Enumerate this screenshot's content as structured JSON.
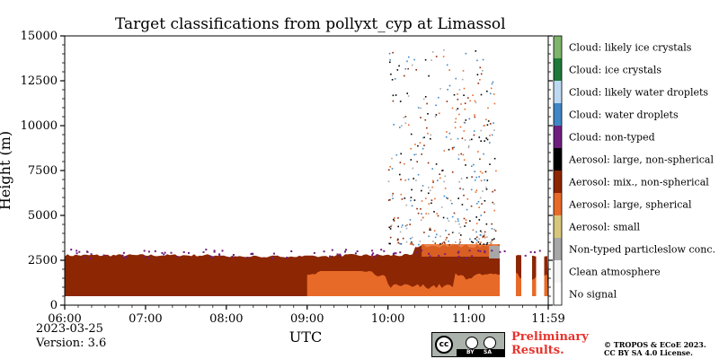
{
  "title": "Target classifications from pollyxt_cyp at Limassol",
  "date": "2023-03-25",
  "version": "Version: 3.6",
  "preliminary": "Preliminary Results.",
  "copyright": "© TROPOS & ECoE 2023. CC BY SA 4.0 License.",
  "license_badge": {
    "by": "BY",
    "sa": "SA",
    "cc": "cc"
  },
  "chart_data": {
    "type": "heatmap",
    "title": "Target classifications from pollyxt_cyp at Limassol",
    "xlabel": "UTC",
    "ylabel": "Height (m)",
    "xlim": [
      "06:00",
      "11:59"
    ],
    "ylim": [
      0,
      15000
    ],
    "x_ticks": [
      "06:00",
      "07:00",
      "08:00",
      "09:00",
      "10:00",
      "11:00",
      "11:59"
    ],
    "y_ticks": [
      0,
      2500,
      5000,
      7500,
      10000,
      12500,
      15000
    ],
    "legend_placement": "right colorbar",
    "classes": [
      {
        "label": "Cloud: likely ice crystals",
        "color": "#7fb46c"
      },
      {
        "label": "Cloud: ice crystals",
        "color": "#1e7a3a"
      },
      {
        "label": "Cloud: likely water droplets",
        "color": "#bdd9f2"
      },
      {
        "label": "Cloud: water droplets",
        "color": "#3f87c6"
      },
      {
        "label": "Cloud: non-typed",
        "color": "#6f1e7f"
      },
      {
        "label": "Aerosol: large, non-spherical",
        "color": "#000000"
      },
      {
        "label": "Aerosol: mix., non-spherical",
        "color": "#8c2603"
      },
      {
        "label": "Aerosol: large, spherical",
        "color": "#e86a28"
      },
      {
        "label": "Aerosol: small",
        "color": "#d8c77a"
      },
      {
        "label": "Non-typed particleslow conc.",
        "color": "#a7a7a7"
      },
      {
        "label": "Clean atmosphere",
        "color": "#f5f5f5"
      },
      {
        "label": "No signal",
        "color": "#ffffff"
      }
    ],
    "regions": [
      {
        "class": "Aerosol: mix., non-spherical",
        "t_start": "06:00",
        "t_end": "11:59",
        "h_min": 500,
        "h_max": 2900
      },
      {
        "class": "Aerosol: large, spherical",
        "t_start": "09:00",
        "t_end": "11:59",
        "h_min": 500,
        "h_max": 1900
      },
      {
        "class": "Aerosol: large, spherical",
        "t_start": "10:25",
        "t_end": "11:25",
        "h_min": 2700,
        "h_max": 3400
      },
      {
        "class": "Non-typed particleslow conc.",
        "t_start": "11:15",
        "t_end": "11:30",
        "h_min": 2600,
        "h_max": 3300
      }
    ]
  }
}
